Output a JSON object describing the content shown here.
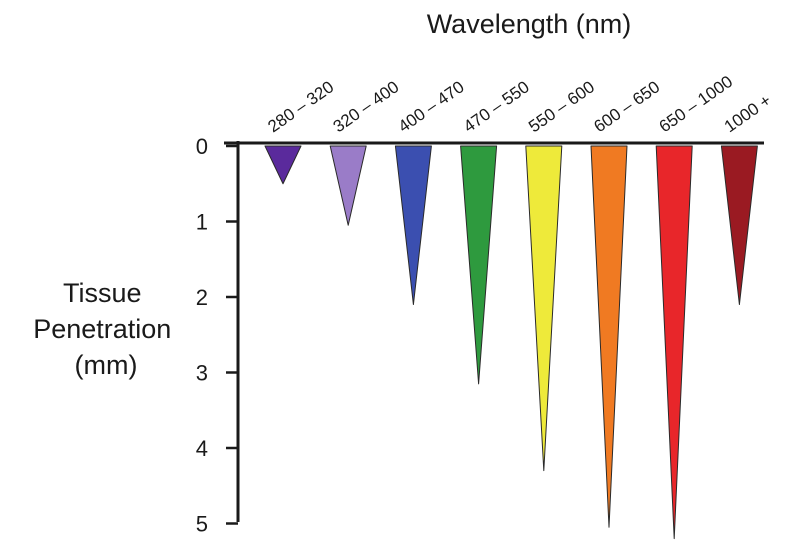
{
  "chart_data": {
    "type": "bar",
    "orientation": "downward-tapered",
    "title": "Wavelength (nm)",
    "xlabel": "Wavelength (nm)",
    "ylabel_lines": [
      "Tissue",
      "Penetration",
      "(mm)"
    ],
    "ylim": [
      0,
      5
    ],
    "yticks": [
      0,
      1,
      2,
      3,
      4,
      5
    ],
    "grid": false,
    "legend": "none",
    "categories": [
      "280 – 320",
      "320 – 400",
      "400 – 470",
      "470 – 550",
      "550 – 600",
      "600 – 650",
      "650 – 1000",
      "1000 +"
    ],
    "values": [
      0.5,
      1.05,
      2.1,
      3.15,
      4.3,
      5.05,
      5.2,
      2.1
    ],
    "colors": [
      "#5a2a9c",
      "#9a7cc8",
      "#3b4fb0",
      "#2e9a3e",
      "#eeea3a",
      "#f07a22",
      "#e8262a",
      "#9a1a22"
    ]
  }
}
